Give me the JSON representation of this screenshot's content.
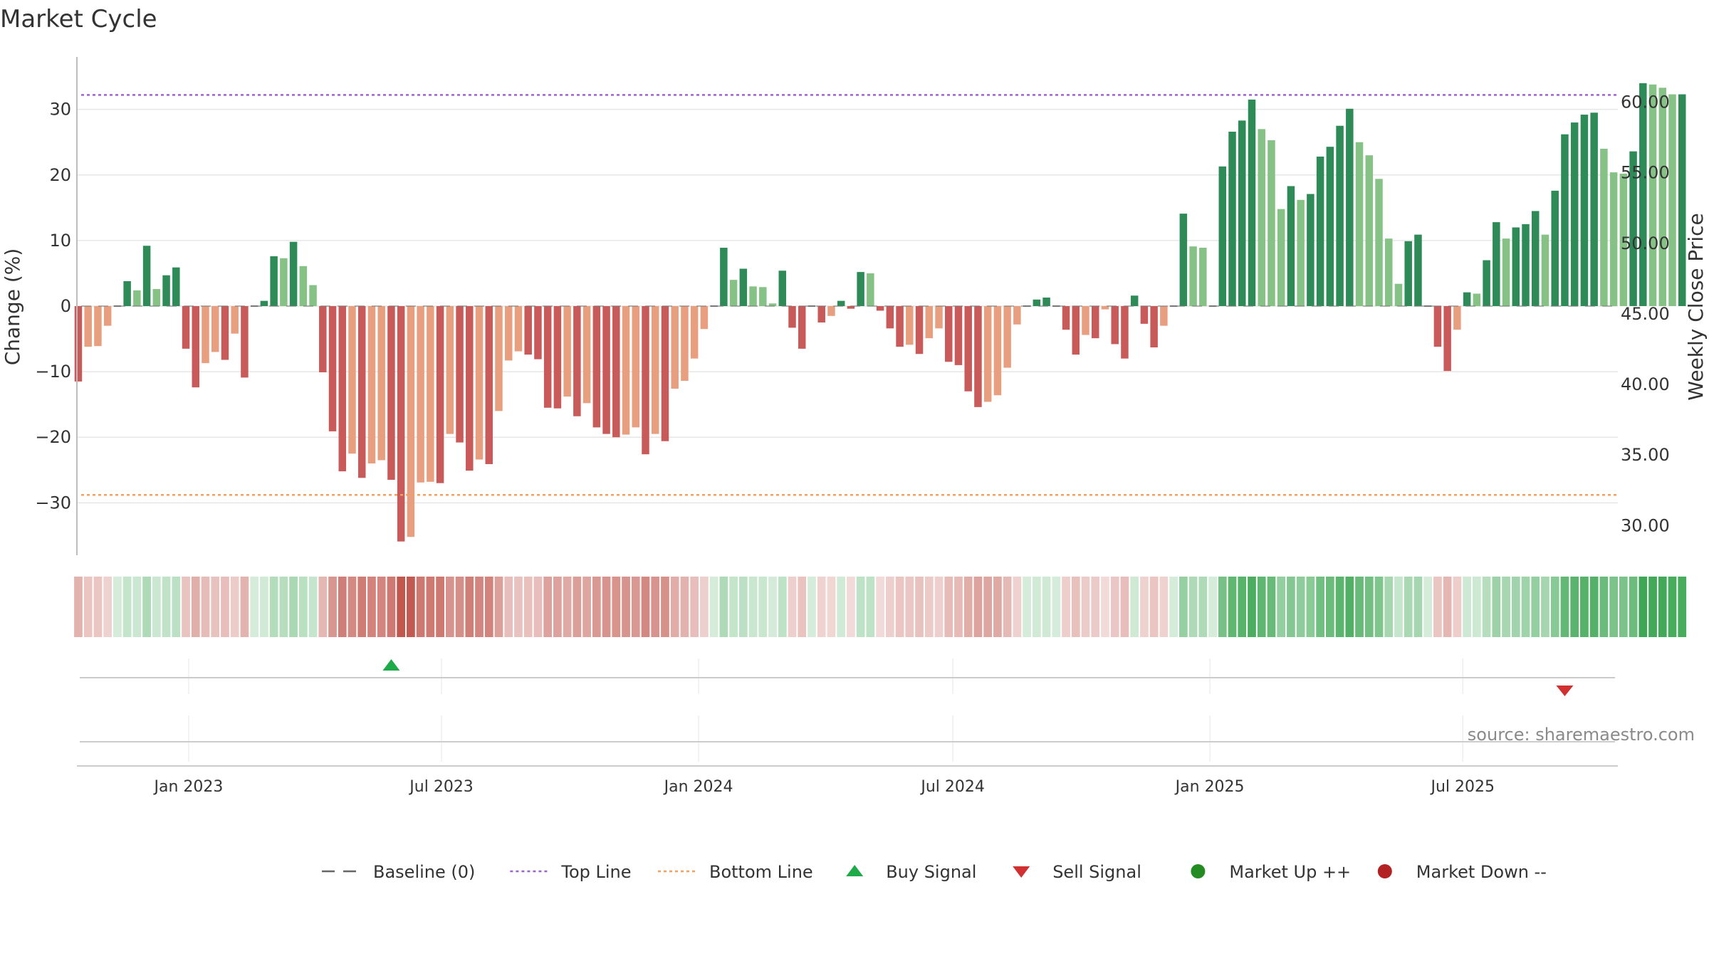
{
  "title": "Market Cycle",
  "source_label": "source: sharemaestro.com",
  "colors": {
    "up_strong": "#2e8b57",
    "up_light": "#86c286",
    "down_strong": "#c85a5a",
    "down_light": "#e89f80",
    "top_line": "#9966cc",
    "bottom_line": "#f0a060",
    "buy": "#1faa4a",
    "sell": "#d03030",
    "market_up": "#228b22",
    "market_down": "#b22222",
    "baseline": "#777777"
  },
  "chart_data": {
    "type": "bar",
    "title": "Market Cycle",
    "ylabel": "Change (%)",
    "y2label": "Weekly Close Price",
    "ylim": [
      -38,
      38
    ],
    "yticks": [
      -30,
      -20,
      -10,
      0,
      10,
      20,
      30
    ],
    "ytick_labels": [
      "−30",
      "−20",
      "−10",
      "0",
      "10",
      "20",
      "30"
    ],
    "y2lim": [
      27.9,
      63.2
    ],
    "y2ticks": [
      30,
      35,
      40,
      45,
      50,
      55,
      60
    ],
    "y2tick_labels": [
      "30.00",
      "35.00",
      "40.00",
      "45.00",
      "50.00",
      "55.00",
      "60.00"
    ],
    "xlim": [
      "2022-10-13",
      "2025-10-20"
    ],
    "xticks": [
      "2023-01-01",
      "2023-07-01",
      "2024-01-01",
      "2024-07-01",
      "2025-01-01",
      "2025-07-01"
    ],
    "xtick_labels": [
      "Jan 2023",
      "Jul 2023",
      "Jan 2024",
      "Jul 2024",
      "Jan 2025",
      "Jul 2025"
    ],
    "top_line": 32.2,
    "bottom_line": -28.8,
    "start_date": "2022-10-14",
    "interval_days": 7,
    "values": [
      -11.5,
      -6.2,
      -6.1,
      -3.0,
      0,
      3.8,
      2.4,
      9.2,
      2.6,
      4.7,
      5.9,
      -6.5,
      -12.4,
      -8.7,
      -7.0,
      -8.2,
      -4.2,
      -10.9,
      0,
      0.8,
      7.6,
      7.3,
      9.8,
      6.1,
      3.2,
      -10.1,
      -19.1,
      -25.2,
      -22.5,
      -26.2,
      -24.0,
      -23.5,
      -26.5,
      -35.9,
      -35.2,
      -26.9,
      -26.8,
      -27.0,
      -19.5,
      -20.8,
      -25.1,
      -23.4,
      -24.1,
      -16.0,
      -8.3,
      -6.9,
      -7.4,
      -8.1,
      -15.5,
      -15.6,
      -13.8,
      -16.8,
      -14.8,
      -18.5,
      -19.5,
      -20.0,
      -19.6,
      -18.5,
      -22.6,
      -19.5,
      -20.6,
      -12.6,
      -11.4,
      -8.0,
      -3.5,
      0,
      8.9,
      4.0,
      5.7,
      3.0,
      2.9,
      0.4,
      5.4,
      -3.3,
      -6.5,
      0,
      -2.5,
      -1.5,
      0.8,
      -0.4,
      5.2,
      5.0,
      -0.7,
      -3.4,
      -6.2,
      -5.9,
      -7.3,
      -4.9,
      -3.4,
      -8.5,
      -9.0,
      -13.0,
      -15.4,
      -14.6,
      -13.6,
      -9.4,
      -2.8,
      0,
      1.0,
      1.3,
      0,
      -3.6,
      -7.4,
      -4.4,
      -4.9,
      -0.5,
      -5.8,
      -8.0,
      1.6,
      -2.7,
      -6.3,
      -3.0,
      0,
      14.1,
      9.1,
      8.9,
      0,
      21.3,
      26.6,
      28.3,
      31.5,
      27.0,
      25.3,
      14.8,
      18.3,
      16.2,
      17.1,
      22.8,
      24.3,
      27.5,
      30.1,
      25.0,
      23.0,
      19.4,
      10.3,
      3.4,
      9.9,
      10.9,
      0,
      -6.2,
      -9.9,
      -3.6,
      2.1,
      1.9,
      7.0,
      12.8,
      10.3,
      12.0,
      12.5,
      14.5,
      10.9,
      17.6,
      26.2,
      28.0,
      29.2,
      29.5,
      24.0,
      20.4,
      20.2,
      23.6,
      34.0,
      33.8,
      33.3,
      32.3,
      32.3
    ]
  },
  "signals": {
    "buy_dates": [
      "2023-05-26"
    ],
    "sell_dates": [
      "2025-09-12"
    ]
  },
  "legend": [
    {
      "label": "Baseline (0)",
      "kind": "dash"
    },
    {
      "label": "Top Line",
      "kind": "dot-purple"
    },
    {
      "label": "Bottom Line",
      "kind": "dot-orange"
    },
    {
      "label": "Buy Signal",
      "kind": "tri-up"
    },
    {
      "label": "Sell Signal",
      "kind": "tri-down"
    },
    {
      "label": "Market Up ++",
      "kind": "circle-green"
    },
    {
      "label": "Market Down --",
      "kind": "circle-red"
    }
  ]
}
